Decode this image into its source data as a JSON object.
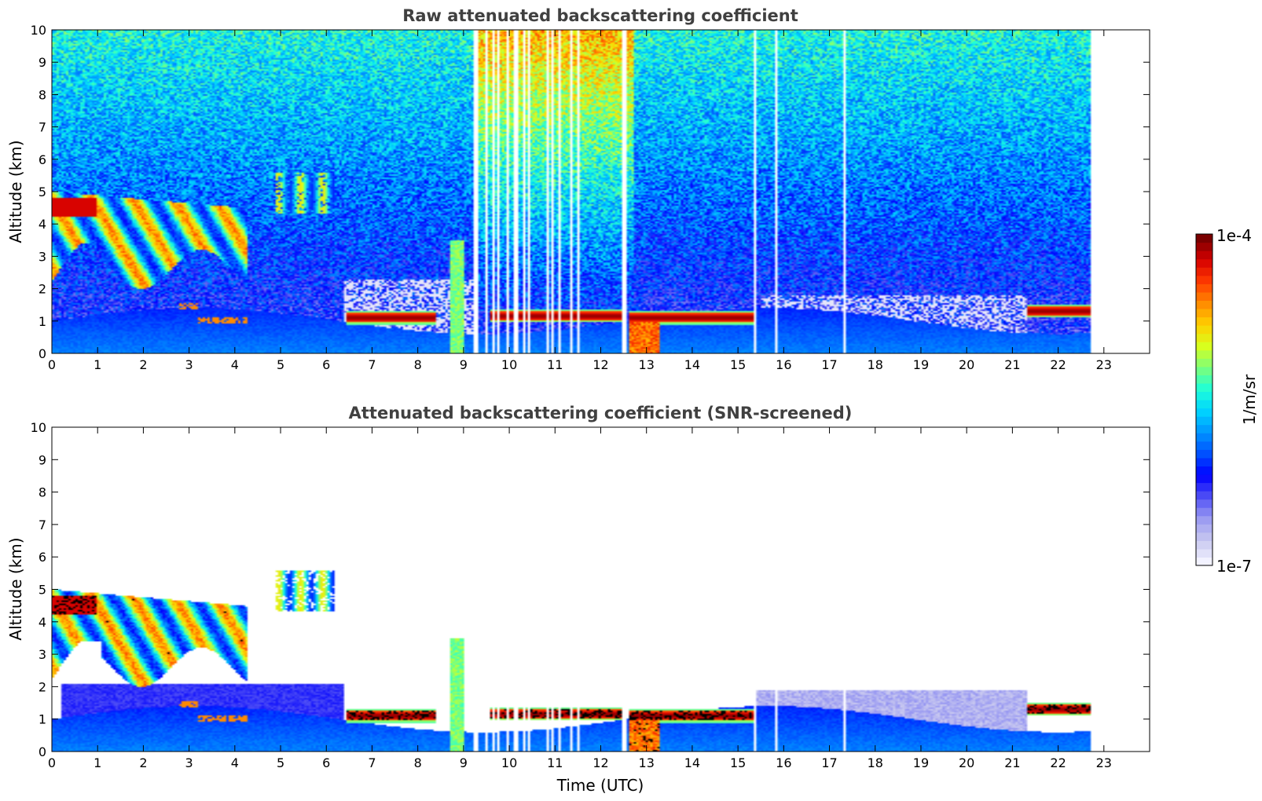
{
  "chart_data": [
    {
      "type": "heatmap",
      "title": "Raw attenuated backscattering coefficient",
      "xlabel": "",
      "ylabel": "Altitude (km)",
      "xlim": [
        0,
        24
      ],
      "ylim": [
        0,
        10
      ],
      "x_ticks": [
        "0",
        "1",
        "2",
        "3",
        "4",
        "5",
        "6",
        "7",
        "8",
        "9",
        "10",
        "11",
        "12",
        "13",
        "14",
        "15",
        "16",
        "17",
        "18",
        "19",
        "20",
        "21",
        "22",
        "23"
      ],
      "y_ticks": [
        "0",
        "1",
        "2",
        "3",
        "4",
        "5",
        "6",
        "7",
        "8",
        "9",
        "10"
      ],
      "data_end_time": 22.7,
      "screened": false
    },
    {
      "type": "heatmap",
      "title": "Attenuated backscattering coefficient (SNR-screened)",
      "xlabel": "Time (UTC)",
      "ylabel": "Altitude (km)",
      "xlim": [
        0,
        24
      ],
      "ylim": [
        0,
        10
      ],
      "x_ticks": [
        "0",
        "1",
        "2",
        "3",
        "4",
        "5",
        "6",
        "7",
        "8",
        "9",
        "10",
        "11",
        "12",
        "13",
        "14",
        "15",
        "16",
        "17",
        "18",
        "19",
        "20",
        "21",
        "22",
        "23"
      ],
      "y_ticks": [
        "0",
        "1",
        "2",
        "3",
        "4",
        "5",
        "6",
        "7",
        "8",
        "9",
        "10"
      ],
      "data_end_time": 22.7,
      "screened": true
    }
  ],
  "colorbar": {
    "label": "1/m/sr",
    "max_label": "1e-4",
    "min_label": "1e-7",
    "scale": "log",
    "range": [
      1e-07,
      0.0001
    ],
    "colormap": [
      "#f2f2ff",
      "#c8c8f0",
      "#9a9af2",
      "#5050f5",
      "#0000ff",
      "#0050ff",
      "#0095ff",
      "#00d5ff",
      "#20ffd8",
      "#7dff7a",
      "#d8ff1e",
      "#ffd000",
      "#ff8a00",
      "#ff3a00",
      "#d60000",
      "#7a0000"
    ]
  },
  "features": {
    "cloud_base_layers": [
      {
        "t0": 6.45,
        "t1": 8.4,
        "alt": 1.1
      },
      {
        "t0": 9.6,
        "t1": 12.5,
        "alt": 1.15
      },
      {
        "t0": 12.6,
        "t1": 15.35,
        "alt": 1.1
      },
      {
        "t0": 21.3,
        "t1": 22.7,
        "alt": 1.3
      }
    ],
    "data_gaps": [
      9.27,
      9.5,
      9.65,
      9.78,
      9.95,
      10.15,
      10.33,
      10.42,
      10.85,
      10.95,
      11.08,
      11.35,
      11.5,
      12.5,
      12.56,
      15.37,
      15.82,
      17.33
    ]
  }
}
